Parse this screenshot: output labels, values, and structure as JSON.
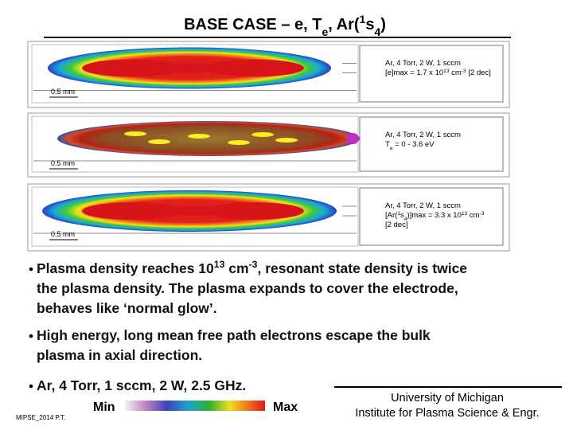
{
  "title": [
    {
      "text": "BASE CASE – e, T",
      "style": "normal"
    },
    {
      "text": "e",
      "style": "sub"
    },
    {
      "text": ", Ar(",
      "style": "normal"
    },
    {
      "text": "1",
      "style": "sup"
    },
    {
      "text": "s",
      "style": "normal"
    },
    {
      "text": "4",
      "style": "sub"
    },
    {
      "text": ")",
      "style": "normal"
    }
  ],
  "panels": [
    {
      "lines": [
        [
          {
            "text": "Ar, 4 Torr, 2 W, 1 sccm",
            "style": "normal"
          }
        ],
        [
          {
            "text": "[e]max = 1.7 x 10",
            "style": "normal"
          },
          {
            "text": "13",
            "style": "sup"
          },
          {
            "text": " cm",
            "style": "normal"
          },
          {
            "text": "-3",
            "style": "sup"
          },
          {
            "text": " [2 dec]",
            "style": "normal"
          }
        ]
      ],
      "scale": "0.5 mm"
    },
    {
      "lines": [
        [
          {
            "text": "Ar, 4 Torr, 2 W, 1 sccm",
            "style": "normal"
          }
        ],
        [
          {
            "text": "T",
            "style": "normal"
          },
          {
            "text": "e",
            "style": "sub"
          },
          {
            "text": " = 0 - 3.6 eV",
            "style": "normal"
          }
        ]
      ],
      "scale": "0.5 mm"
    },
    {
      "lines": [
        [
          {
            "text": "Ar, 4 Torr, 2 W, 1 sccm",
            "style": "normal"
          }
        ],
        [
          {
            "text": "[Ar(",
            "style": "normal"
          },
          {
            "text": "1",
            "style": "sup"
          },
          {
            "text": "s",
            "style": "normal"
          },
          {
            "text": "4",
            "style": "sub"
          },
          {
            "text": ")]max = 3.3 x 10",
            "style": "normal"
          },
          {
            "text": "13",
            "style": "sup"
          },
          {
            "text": " cm",
            "style": "normal"
          },
          {
            "text": "-3",
            "style": "sup"
          }
        ],
        [
          {
            "text": "[2 dec]",
            "style": "normal"
          }
        ]
      ],
      "scale": "0.5 mm"
    }
  ],
  "bullets": [
    {
      "lines": [
        [
          {
            "text": "Plasma density reaches 10",
            "style": "normal"
          },
          {
            "text": "13",
            "style": "sup"
          },
          {
            "text": " cm",
            "style": "normal"
          },
          {
            "text": "-3",
            "style": "sup"
          },
          {
            "text": ", resonant state density is twice",
            "style": "normal"
          }
        ],
        [
          {
            "text": "the plasma density.  The plasma expands to cover the electrode,",
            "style": "normal"
          }
        ],
        [
          {
            "text": "behaves like ‘normal glow’.",
            "style": "normal"
          }
        ]
      ]
    },
    {
      "lines": [
        [
          {
            "text": "High energy, long mean free path electrons escape the bulk",
            "style": "normal"
          }
        ],
        [
          {
            "text": "plasma in axial direction.",
            "style": "normal"
          }
        ]
      ]
    },
    {
      "lines": [
        [
          {
            "text": "Ar, 4 Torr, 1 sccm, 2 W, 2.5 GHz.",
            "style": "normal"
          }
        ]
      ]
    }
  ],
  "footer": {
    "credit": "MIPSE_2014 P.T.",
    "colorbar_min": "Min",
    "colorbar_max": "Max",
    "affiliation": [
      "University of Michigan",
      "Institute for Plasma Science & Engr."
    ]
  }
}
